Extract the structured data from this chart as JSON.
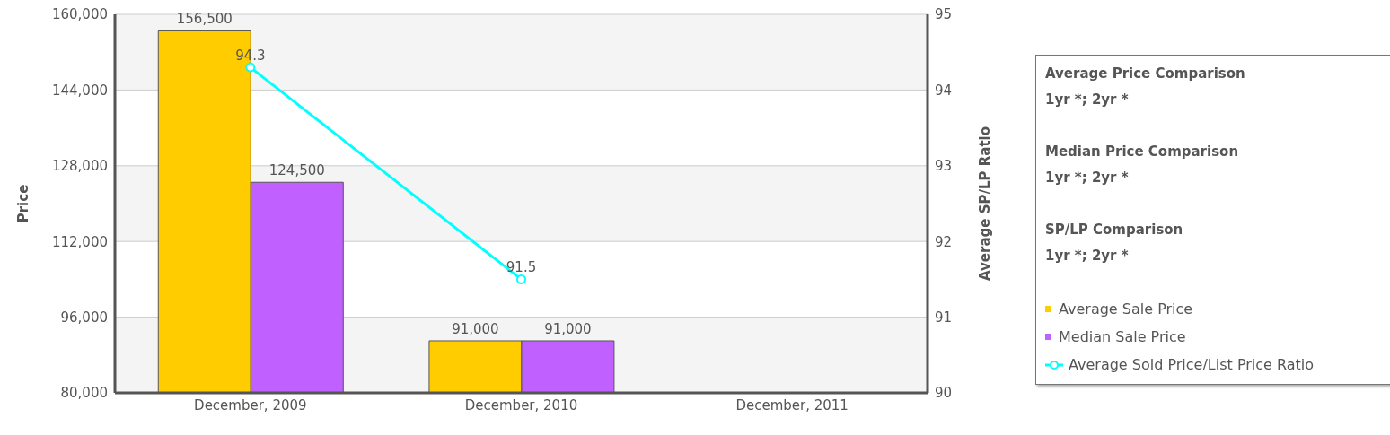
{
  "chart_data": {
    "type": "bar",
    "categories": [
      "December, 2009",
      "December, 2010",
      "December, 2011"
    ],
    "series": [
      {
        "name": "Average Sale Price",
        "color": "#ffcc00",
        "values": [
          156500,
          91000,
          null
        ],
        "value_labels": [
          "156,500",
          "91,000",
          null
        ]
      },
      {
        "name": "Median Sale Price",
        "color": "#c060ff",
        "values": [
          124500,
          91000,
          null
        ],
        "value_labels": [
          "124,500",
          "91,000",
          null
        ]
      },
      {
        "name": "Average Sold Price/List Price Ratio",
        "type": "line",
        "axis": "y2",
        "color": "#00ffff",
        "values": [
          94.3,
          91.5,
          null
        ],
        "value_labels": [
          "94.3",
          "91.5",
          null
        ]
      }
    ],
    "ylabel": "Price",
    "y2label": "Average SP/LP Ratio",
    "ylim": [
      80000,
      160000
    ],
    "yticks": [
      {
        "value": 80000,
        "label": "80,000"
      },
      {
        "value": 96000,
        "label": "96,000"
      },
      {
        "value": 112000,
        "label": "112,000"
      },
      {
        "value": 128000,
        "label": "128,000"
      },
      {
        "value": 144000,
        "label": "144,000"
      },
      {
        "value": 160000,
        "label": "160,000"
      }
    ],
    "y2lim": [
      90,
      95
    ],
    "y2ticks": [
      90,
      91,
      92,
      93,
      94,
      95
    ],
    "grid": "y",
    "legend": "right",
    "marker": "circle",
    "annotations": [
      "Average Price Comparison",
      "1yr *; 2yr *",
      "Median Price Comparison",
      "1yr *; 2yr *",
      "SP/LP Comparison",
      "1yr *; 2yr *"
    ]
  }
}
